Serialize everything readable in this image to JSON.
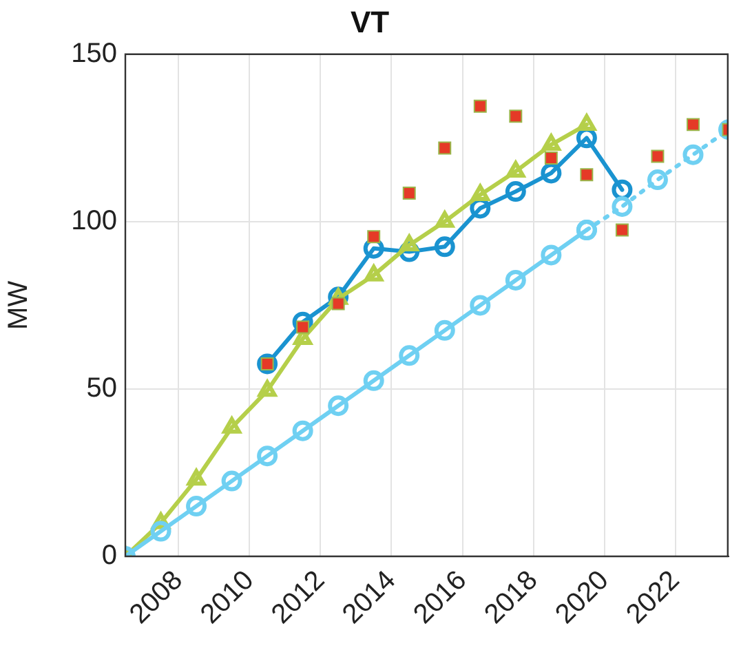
{
  "chart_data": {
    "type": "line",
    "title": "VT",
    "ylabel": "MW",
    "xlim": [
      2006.5,
      2023.5
    ],
    "xticks": [
      2008,
      2010,
      2012,
      2014,
      2016,
      2018,
      2020,
      2022
    ],
    "ylim": [
      0,
      150
    ],
    "yticks": [
      0,
      50,
      100,
      150
    ],
    "grid": true,
    "series": [
      {
        "color": "#6fd0f2",
        "marker": "circle",
        "line_style": "solid",
        "x": [
          2006.5,
          2007.5,
          2008.5,
          2009.5,
          2010.5,
          2011.5,
          2012.5,
          2013.5,
          2014.5,
          2015.5,
          2016.5,
          2017.5,
          2018.5,
          2019.5
        ],
        "values": [
          0,
          7.5,
          15,
          22.5,
          30,
          37.5,
          45,
          52.5,
          60,
          67.5,
          75,
          82.5,
          90,
          97.5
        ]
      },
      {
        "color": "#6fd0f2",
        "marker": "circle",
        "line_style": "dotted",
        "x": [
          2019.5,
          2020.5,
          2021.5,
          2022.5,
          2023.5
        ],
        "values": [
          97.5,
          104.5,
          112.5,
          120,
          127.5
        ]
      },
      {
        "color": "#b5cf4a",
        "marker": "triangle",
        "line_style": "solid",
        "x": [
          2006.5,
          2007.5,
          2008.5,
          2009.5,
          2010.5,
          2011.5,
          2012.5,
          2013.5,
          2014.5,
          2015.5,
          2016.5,
          2017.5,
          2018.5,
          2019.5
        ],
        "values": [
          0,
          10,
          23,
          38.5,
          49.5,
          65,
          77,
          84,
          93,
          100,
          108,
          115,
          123,
          129
        ]
      },
      {
        "color": "#1a93d0",
        "marker": "circle",
        "line_style": "solid",
        "x": [
          2010.5,
          2011.5,
          2012.5,
          2013.5,
          2014.5,
          2015.5,
          2016.5,
          2017.5,
          2018.5,
          2019.5,
          2020.5
        ],
        "values": [
          57.5,
          70,
          77.5,
          92,
          91,
          92.5,
          104,
          109,
          114.5,
          125,
          109.5
        ]
      },
      {
        "type": "scatter",
        "color": "#e53a27",
        "marker": "square",
        "x": [
          2010.5,
          2011.5,
          2012.5,
          2013.5,
          2014.5,
          2015.5,
          2016.5,
          2017.5,
          2018.5,
          2019.5,
          2020.5,
          2021.5,
          2022.5,
          2023.5
        ],
        "values": [
          57.5,
          68.5,
          75.5,
          95.5,
          108.5,
          122,
          134.5,
          131.5,
          119,
          114,
          97.5,
          119.5,
          129,
          127.5
        ]
      }
    ]
  }
}
